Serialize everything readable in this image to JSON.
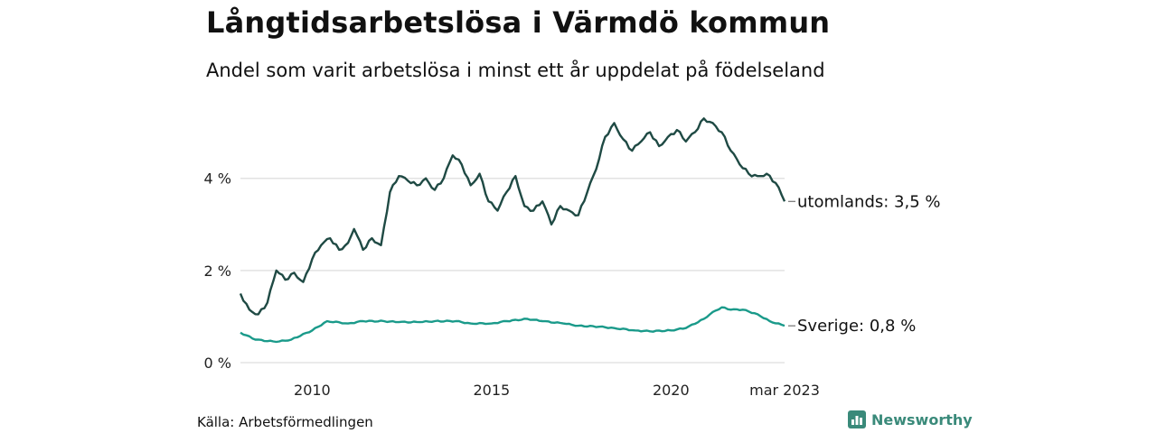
{
  "header": {
    "title": "Långtidsarbetslösa i Värmdö kommun",
    "subtitle": "Andel som varit arbetslösa i minst ett år uppdelat på födelseland"
  },
  "footer": {
    "source": "Källa: Arbetsförmedlingen",
    "brand": "Newsworthy",
    "brand_icon": "bar-chart-logo-icon"
  },
  "colors": {
    "utomlands": "#1f4a44",
    "sverige": "#1a9a8a",
    "grid": "#dddddd",
    "brand": "#3a8a7a"
  },
  "chart_data": {
    "type": "line",
    "title": "Långtidsarbetslösa i Värmdö kommun",
    "subtitle": "Andel som varit arbetslösa i minst ett år uppdelat på födelseland",
    "xlabel": "",
    "ylabel": "",
    "ylim": [
      0,
      5.6
    ],
    "xlim": [
      "2008-01",
      "2023-03"
    ],
    "y_ticks": [
      0,
      2,
      4
    ],
    "y_tick_labels": [
      "0 %",
      "2 %",
      "4 %"
    ],
    "x_ticks": [
      "2010-01",
      "2015-01",
      "2020-01",
      "2023-03"
    ],
    "x_tick_labels": [
      "2010",
      "2015",
      "2020",
      "mar 2023"
    ],
    "grid": true,
    "legend": "end-labels",
    "series": [
      {
        "name": "utomlands",
        "end_label": "utomlands: 3,5 %",
        "color": "#1f4a44",
        "points": [
          [
            "2008-01",
            1.5
          ],
          [
            "2008-04",
            1.15
          ],
          [
            "2008-07",
            1.05
          ],
          [
            "2008-10",
            1.3
          ],
          [
            "2009-01",
            2.0
          ],
          [
            "2009-04",
            1.8
          ],
          [
            "2009-07",
            1.95
          ],
          [
            "2009-10",
            1.75
          ],
          [
            "2010-01",
            2.25
          ],
          [
            "2010-04",
            2.55
          ],
          [
            "2010-07",
            2.7
          ],
          [
            "2010-10",
            2.45
          ],
          [
            "2011-01",
            2.6
          ],
          [
            "2011-03",
            2.9
          ],
          [
            "2011-06",
            2.45
          ],
          [
            "2011-09",
            2.7
          ],
          [
            "2011-12",
            2.55
          ],
          [
            "2012-03",
            3.7
          ],
          [
            "2012-06",
            4.05
          ],
          [
            "2012-09",
            3.95
          ],
          [
            "2012-12",
            3.85
          ],
          [
            "2013-03",
            4.0
          ],
          [
            "2013-06",
            3.75
          ],
          [
            "2013-09",
            4.0
          ],
          [
            "2013-12",
            4.5
          ],
          [
            "2014-03",
            4.3
          ],
          [
            "2014-06",
            3.85
          ],
          [
            "2014-09",
            4.1
          ],
          [
            "2014-12",
            3.5
          ],
          [
            "2015-03",
            3.3
          ],
          [
            "2015-06",
            3.7
          ],
          [
            "2015-09",
            4.05
          ],
          [
            "2015-12",
            3.4
          ],
          [
            "2016-03",
            3.3
          ],
          [
            "2016-06",
            3.5
          ],
          [
            "2016-09",
            3.0
          ],
          [
            "2016-12",
            3.4
          ],
          [
            "2017-03",
            3.3
          ],
          [
            "2017-06",
            3.2
          ],
          [
            "2017-09",
            3.7
          ],
          [
            "2017-12",
            4.2
          ],
          [
            "2018-03",
            4.9
          ],
          [
            "2018-06",
            5.2
          ],
          [
            "2018-09",
            4.85
          ],
          [
            "2018-12",
            4.6
          ],
          [
            "2019-03",
            4.8
          ],
          [
            "2019-06",
            5.0
          ],
          [
            "2019-09",
            4.7
          ],
          [
            "2019-12",
            4.9
          ],
          [
            "2020-03",
            5.05
          ],
          [
            "2020-06",
            4.8
          ],
          [
            "2020-09",
            5.0
          ],
          [
            "2020-12",
            5.3
          ],
          [
            "2021-03",
            5.2
          ],
          [
            "2021-06",
            5.0
          ],
          [
            "2021-09",
            4.6
          ],
          [
            "2021-12",
            4.3
          ],
          [
            "2022-03",
            4.1
          ],
          [
            "2022-06",
            4.05
          ],
          [
            "2022-09",
            4.1
          ],
          [
            "2022-12",
            3.9
          ],
          [
            "2023-03",
            3.5
          ]
        ]
      },
      {
        "name": "Sverige",
        "end_label": "Sverige: 0,8 %",
        "color": "#1a9a8a",
        "points": [
          [
            "2008-01",
            0.65
          ],
          [
            "2008-06",
            0.5
          ],
          [
            "2009-01",
            0.45
          ],
          [
            "2009-06",
            0.5
          ],
          [
            "2010-01",
            0.7
          ],
          [
            "2010-06",
            0.9
          ],
          [
            "2011-01",
            0.85
          ],
          [
            "2011-06",
            0.9
          ],
          [
            "2012-01",
            0.9
          ],
          [
            "2012-06",
            0.88
          ],
          [
            "2013-01",
            0.88
          ],
          [
            "2013-06",
            0.9
          ],
          [
            "2014-01",
            0.9
          ],
          [
            "2014-06",
            0.85
          ],
          [
            "2015-01",
            0.85
          ],
          [
            "2015-06",
            0.9
          ],
          [
            "2016-01",
            0.95
          ],
          [
            "2016-06",
            0.9
          ],
          [
            "2017-01",
            0.85
          ],
          [
            "2017-06",
            0.8
          ],
          [
            "2018-01",
            0.78
          ],
          [
            "2018-06",
            0.75
          ],
          [
            "2019-01",
            0.7
          ],
          [
            "2019-06",
            0.68
          ],
          [
            "2020-01",
            0.7
          ],
          [
            "2020-06",
            0.75
          ],
          [
            "2020-12",
            0.95
          ],
          [
            "2021-03",
            1.1
          ],
          [
            "2021-06",
            1.2
          ],
          [
            "2021-09",
            1.15
          ],
          [
            "2022-01",
            1.15
          ],
          [
            "2022-06",
            1.05
          ],
          [
            "2022-10",
            0.9
          ],
          [
            "2023-03",
            0.8
          ]
        ]
      }
    ]
  }
}
